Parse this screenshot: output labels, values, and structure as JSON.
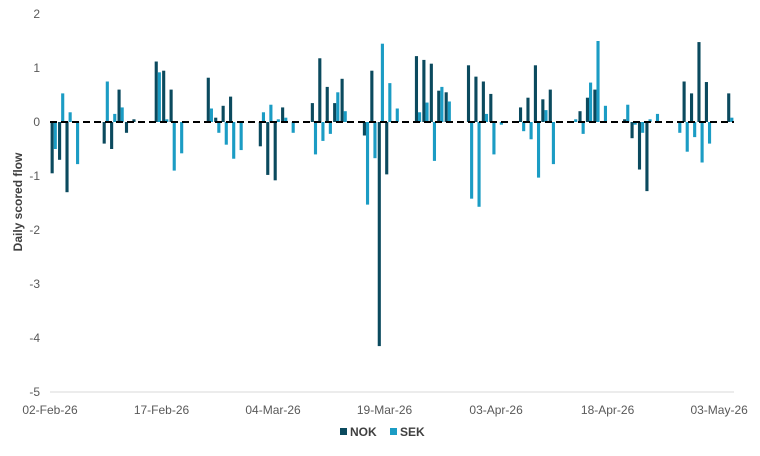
{
  "chart_data": {
    "type": "bar",
    "ylabel": "Daily scored flow",
    "ylim": [
      -5,
      2
    ],
    "y_ticks": [
      "2",
      "1",
      "0",
      "-1",
      "-2",
      "-3",
      "-4",
      "-5"
    ],
    "x_tick_labels": [
      "02-Feb-26",
      "17-Feb-26",
      "04-Mar-26",
      "19-Mar-26",
      "03-Apr-26",
      "18-Apr-26",
      "03-May-26"
    ],
    "x_start": "02-Feb-26",
    "x_end": "05-May-26",
    "legend_position": "bottom",
    "zero_line_style": "dashed",
    "colors": {
      "NOK": "#0b4a5e",
      "SEK": "#1b9cc4"
    },
    "series": [
      {
        "name": "NOK",
        "color": "#0b4a5e",
        "dates": [
          "2026-02-02",
          "2026-02-03",
          "2026-02-04",
          "2026-02-05",
          "2026-02-06",
          "2026-02-09",
          "2026-02-10",
          "2026-02-11",
          "2026-02-12",
          "2026-02-13",
          "2026-02-16",
          "2026-02-17",
          "2026-02-18",
          "2026-02-19",
          "2026-02-20",
          "2026-02-23",
          "2026-02-24",
          "2026-02-25",
          "2026-02-26",
          "2026-02-27",
          "2026-03-02",
          "2026-03-03",
          "2026-03-04",
          "2026-03-05",
          "2026-03-06",
          "2026-03-09",
          "2026-03-10",
          "2026-03-11",
          "2026-03-12",
          "2026-03-13",
          "2026-03-16",
          "2026-03-17",
          "2026-03-18",
          "2026-03-19",
          "2026-03-20",
          "2026-03-23",
          "2026-03-24",
          "2026-03-25",
          "2026-03-26",
          "2026-03-27",
          "2026-03-30",
          "2026-03-31",
          "2026-04-01",
          "2026-04-02",
          "2026-04-03",
          "2026-04-06",
          "2026-04-07",
          "2026-04-08",
          "2026-04-09",
          "2026-04-10",
          "2026-04-13",
          "2026-04-14",
          "2026-04-15",
          "2026-04-16",
          "2026-04-17",
          "2026-04-20",
          "2026-04-21",
          "2026-04-22",
          "2026-04-23",
          "2026-04-24",
          "2026-04-27",
          "2026-04-28",
          "2026-04-29",
          "2026-04-30",
          "2026-05-01",
          "2026-05-04",
          "2026-05-05"
        ],
        "values": [
          -0.95,
          -0.7,
          -1.3,
          0.0,
          0.0,
          -0.4,
          -0.5,
          0.6,
          -0.2,
          0.05,
          1.12,
          0.95,
          0.6,
          0.0,
          0.0,
          0.82,
          0.08,
          0.3,
          0.47,
          0.0,
          -0.45,
          -0.98,
          -1.08,
          0.27,
          0.0,
          0.35,
          1.18,
          0.65,
          0.35,
          0.8,
          -0.25,
          0.95,
          -4.15,
          -0.97,
          0.0,
          1.22,
          1.15,
          1.08,
          0.58,
          0.55,
          1.05,
          0.84,
          0.75,
          0.52,
          0.0,
          0.27,
          0.45,
          1.05,
          0.42,
          0.6,
          0.0,
          0.2,
          0.45,
          0.6,
          0.0,
          0.05,
          -0.3,
          -0.88,
          -1.28,
          0.0,
          0.0,
          0.75,
          0.53,
          1.48,
          0.74,
          0.53,
          0.0
        ]
      },
      {
        "name": "SEK",
        "color": "#1b9cc4",
        "dates": [
          "2026-02-02",
          "2026-02-03",
          "2026-02-04",
          "2026-02-05",
          "2026-02-06",
          "2026-02-09",
          "2026-02-10",
          "2026-02-11",
          "2026-02-12",
          "2026-02-13",
          "2026-02-16",
          "2026-02-17",
          "2026-02-18",
          "2026-02-19",
          "2026-02-20",
          "2026-02-23",
          "2026-02-24",
          "2026-02-25",
          "2026-02-26",
          "2026-02-27",
          "2026-03-02",
          "2026-03-03",
          "2026-03-04",
          "2026-03-05",
          "2026-03-06",
          "2026-03-09",
          "2026-03-10",
          "2026-03-11",
          "2026-03-12",
          "2026-03-13",
          "2026-03-16",
          "2026-03-17",
          "2026-03-18",
          "2026-03-19",
          "2026-03-20",
          "2026-03-23",
          "2026-03-24",
          "2026-03-25",
          "2026-03-26",
          "2026-03-27",
          "2026-03-30",
          "2026-03-31",
          "2026-04-01",
          "2026-04-02",
          "2026-04-03",
          "2026-04-06",
          "2026-04-07",
          "2026-04-08",
          "2026-04-09",
          "2026-04-10",
          "2026-04-13",
          "2026-04-14",
          "2026-04-15",
          "2026-04-16",
          "2026-04-17",
          "2026-04-20",
          "2026-04-21",
          "2026-04-22",
          "2026-04-23",
          "2026-04-24",
          "2026-04-27",
          "2026-04-28",
          "2026-04-29",
          "2026-04-30",
          "2026-05-01",
          "2026-05-04",
          "2026-05-05"
        ],
        "values": [
          -0.5,
          0.53,
          0.18,
          -0.78,
          0.0,
          0.75,
          0.15,
          0.27,
          0.0,
          0.0,
          0.92,
          0.05,
          -0.9,
          -0.58,
          0.0,
          0.25,
          -0.2,
          -0.42,
          -0.68,
          -0.52,
          0.18,
          0.32,
          0.05,
          0.08,
          -0.2,
          -0.6,
          -0.35,
          -0.22,
          0.55,
          0.2,
          -1.53,
          -0.67,
          1.45,
          0.72,
          0.25,
          0.18,
          0.36,
          -0.72,
          0.65,
          0.38,
          -1.42,
          -1.57,
          0.15,
          -0.6,
          -0.05,
          -0.17,
          -0.32,
          -1.03,
          0.22,
          -0.78,
          0.05,
          -0.22,
          0.73,
          1.5,
          0.3,
          0.32,
          -0.05,
          -0.2,
          0.05,
          0.15,
          -0.2,
          -0.55,
          -0.28,
          -0.75,
          -0.4,
          0.08,
          0.0
        ]
      }
    ]
  }
}
